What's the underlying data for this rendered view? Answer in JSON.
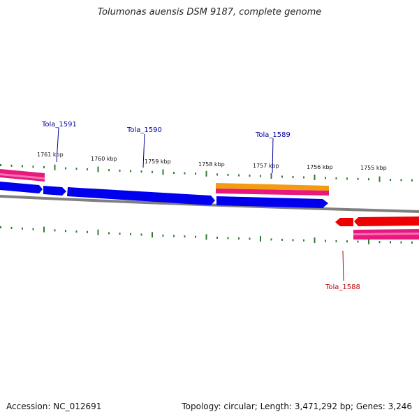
{
  "title": "Tolumonas auensis DSM 9187, complete genome",
  "footer": {
    "accession": "Accession: NC_012691",
    "info": "Topology: circular; Length: 3,471,292 bp; Genes: 3,246"
  },
  "kbp_labels": [
    "1761 kbp",
    "1760 kbp",
    "1759 kbp",
    "1758 kbp",
    "1757 kbp",
    "1756 kbp",
    "1755 kbp"
  ],
  "gene_labels": [
    {
      "id": "Tola_1591",
      "strand": "forward"
    },
    {
      "id": "Tola_1590",
      "strand": "forward"
    },
    {
      "id": "Tola_1589",
      "strand": "forward"
    },
    {
      "id": "Tola_1588",
      "strand": "reverse"
    }
  ],
  "colors": {
    "forward_cds": "#0000ee",
    "reverse_cds": "#ee0000",
    "feature_pink": "#e8187c",
    "feature_orange": "#f39c12",
    "backbone": "#808080",
    "ticks": "#2e7d32",
    "forward_label": "#00009b",
    "reverse_label": "#c00000"
  }
}
